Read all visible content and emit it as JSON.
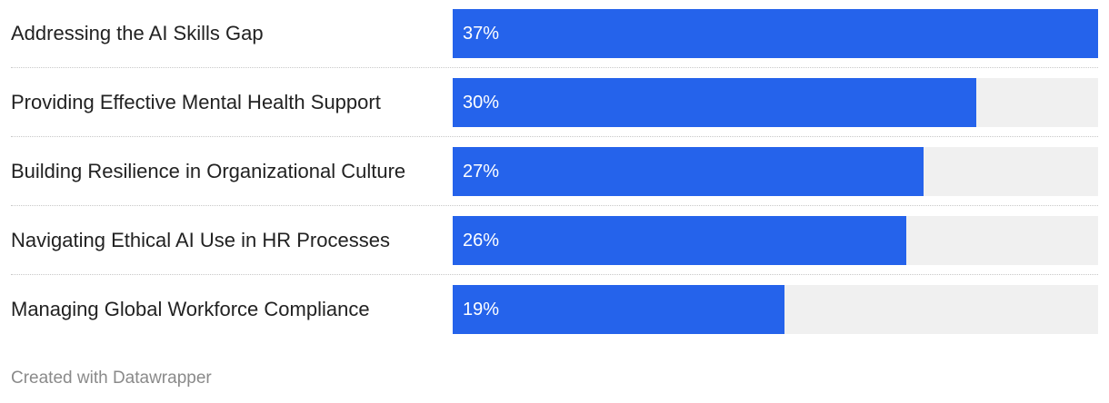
{
  "chart_data": {
    "type": "bar",
    "orientation": "horizontal",
    "categories": [
      "Addressing the AI Skills Gap",
      "Providing Effective Mental Health Support",
      "Building Resilience in Organizational Culture",
      "Navigating Ethical AI Use in HR Processes",
      "Managing Global Workforce Compliance"
    ],
    "values": [
      37,
      30,
      27,
      26,
      19
    ],
    "value_labels": [
      "37%",
      "30%",
      "27%",
      "26%",
      "19%"
    ],
    "xlim": [
      0,
      37
    ],
    "grid": false,
    "bar_color": "#2563EB",
    "track_color": "#F0F0F0"
  },
  "footer": {
    "credit": "Created with Datawrapper"
  }
}
